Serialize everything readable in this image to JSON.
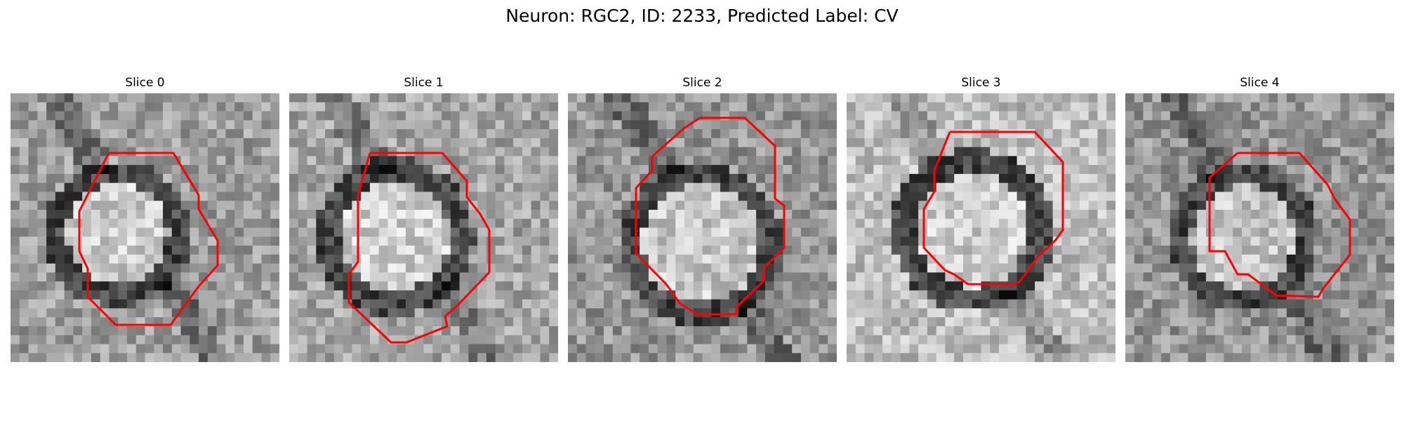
{
  "figure": {
    "title": "Neuron: RGC2, ID: 2233, Predicted Label: CV",
    "outline_color": "#ff0000"
  },
  "slices": [
    {
      "title": "Slice 0"
    },
    {
      "title": "Slice 1"
    },
    {
      "title": "Slice 2"
    },
    {
      "title": "Slice 3"
    },
    {
      "title": "Slice 4"
    }
  ]
}
